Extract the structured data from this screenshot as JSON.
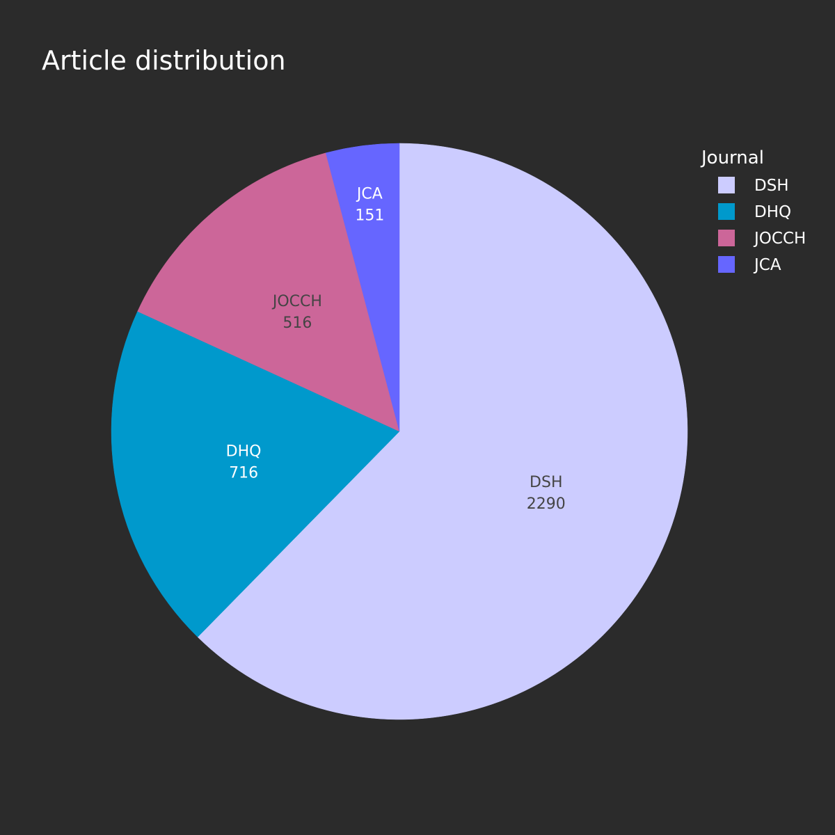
{
  "chart_data": {
    "type": "pie",
    "title": "Article distribution",
    "legend_title": "Journal",
    "legend_position": "top-right",
    "slices": [
      {
        "label": "DSH",
        "value": 2290,
        "color": "#ccccff",
        "text_color": "#444444"
      },
      {
        "label": "DHQ",
        "value": 716,
        "color": "#0099cc",
        "text_color": "#ffffff"
      },
      {
        "label": "JOCCH",
        "value": 516,
        "color": "#cc6699",
        "text_color": "#444444"
      },
      {
        "label": "JCA",
        "value": 151,
        "color": "#6666ff",
        "text_color": "#ffffff"
      }
    ],
    "legend_order": [
      "DSH",
      "DHQ",
      "JOCCH",
      "JCA"
    ],
    "direction": "clockwise",
    "start_angle_from_top_deg": 0
  },
  "background_color": "#2b2b2b"
}
